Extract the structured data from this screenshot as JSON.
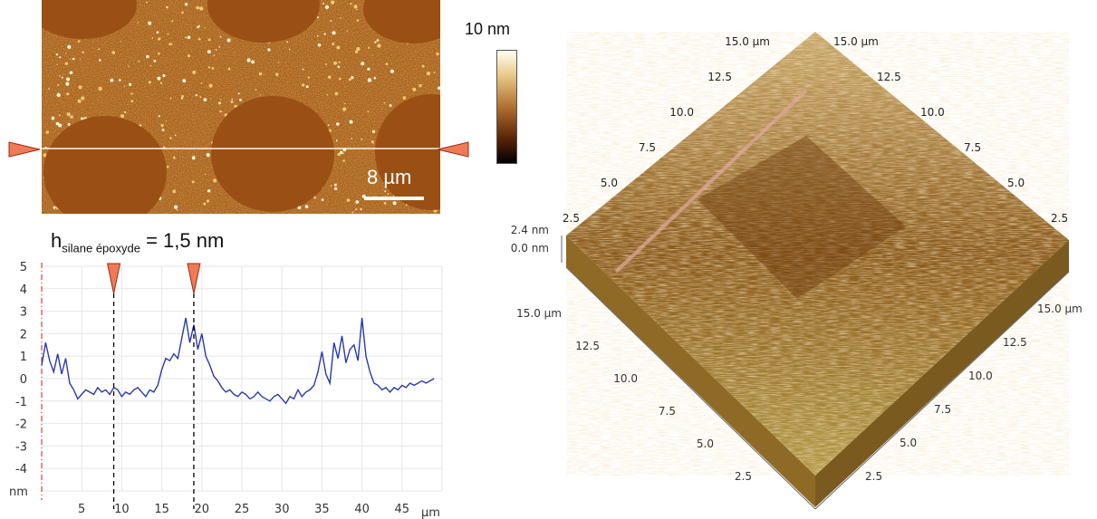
{
  "afm_image": {
    "colorbar_label": "10 nm",
    "scalebar_label": "8 µm"
  },
  "profile_annotation": {
    "text_main": "h",
    "text_sub": "silane époxyde",
    "text_value": " = 1,5 nm"
  },
  "chart_data": [
    {
      "type": "line",
      "ylabel": "nm",
      "xlabel": "µm",
      "xlim": [
        0,
        50
      ],
      "ylim": [
        -5,
        5
      ],
      "x_ticks": [
        "5",
        "10",
        "15",
        "20",
        "25",
        "30",
        "35",
        "40",
        "45"
      ],
      "y_ticks": [
        "5",
        "4",
        "3",
        "2",
        "1",
        "0",
        "-1",
        "-2",
        "-3",
        "-4"
      ],
      "grid": true,
      "markers_x": [
        9,
        19
      ],
      "series": [
        {
          "color": "#2a3aa8",
          "x": [
            0,
            0.5,
            1,
            1.5,
            2,
            2.5,
            3,
            3.5,
            4,
            4.5,
            5,
            5.5,
            6,
            6.5,
            7,
            7.5,
            8,
            8.5,
            9,
            9.5,
            10,
            10.5,
            11,
            11.5,
            12,
            12.5,
            13,
            13.5,
            14,
            14.5,
            15,
            15.5,
            16,
            16.5,
            17,
            17.5,
            18,
            18.5,
            19,
            19.5,
            20,
            20.5,
            21,
            21.5,
            22,
            22.5,
            23,
            23.5,
            24,
            24.5,
            25,
            25.5,
            26,
            26.5,
            27,
            27.5,
            28,
            28.5,
            29,
            29.5,
            30,
            30.5,
            31,
            31.5,
            32,
            32.5,
            33,
            33.5,
            34,
            34.5,
            35,
            35.5,
            36,
            36.5,
            37,
            37.5,
            38,
            38.5,
            39,
            39.5,
            40,
            40.5,
            41,
            41.5,
            42,
            42.5,
            43,
            43.5,
            44,
            44.5,
            45,
            45.5,
            46,
            46.5,
            47,
            47.5,
            48,
            48.5,
            49
          ],
          "y": [
            0.6,
            1.6,
            0.8,
            0.3,
            1.1,
            0.2,
            0.9,
            -0.2,
            -0.5,
            -0.9,
            -0.7,
            -0.5,
            -0.6,
            -0.7,
            -0.4,
            -0.6,
            -0.5,
            -0.7,
            -0.4,
            -0.5,
            -0.8,
            -0.6,
            -0.7,
            -0.5,
            -0.4,
            -0.6,
            -0.8,
            -0.5,
            -0.6,
            -0.3,
            0.4,
            0.9,
            0.8,
            1.1,
            0.9,
            1.8,
            2.7,
            1.6,
            2.4,
            1.3,
            2.0,
            1.0,
            0.6,
            0.1,
            -0.1,
            -0.4,
            -0.6,
            -0.5,
            -0.7,
            -0.8,
            -0.6,
            -0.7,
            -0.9,
            -0.8,
            -0.6,
            -0.8,
            -0.9,
            -1.0,
            -0.8,
            -0.7,
            -0.9,
            -1.1,
            -0.8,
            -0.9,
            -0.5,
            -0.8,
            -0.6,
            -0.5,
            -0.3,
            0.3,
            1.2,
            0.2,
            -0.2,
            1.6,
            0.9,
            1.9,
            0.7,
            1.3,
            1.5,
            0.8,
            2.7,
            1.0,
            0.3,
            -0.2,
            -0.3,
            -0.5,
            -0.4,
            -0.6,
            -0.4,
            -0.5,
            -0.3,
            -0.4,
            -0.2,
            -0.3,
            -0.2,
            -0.1,
            -0.2,
            -0.1,
            0.0
          ]
        }
      ]
    },
    {
      "type": "surface",
      "z_ticks": [
        "2.4 nm",
        "0.0 nm"
      ],
      "front_left_axis": [
        "15.0 µm",
        "12.5",
        "10.0",
        "7.5",
        "5.0",
        "2.5"
      ],
      "front_right_axis": [
        "15.0 µm",
        "12.5",
        "10.0",
        "7.5",
        "5.0",
        "2.5"
      ],
      "back_left_axis": [
        "15.0 µm",
        "12.5",
        "10.0",
        "7.5",
        "5.0",
        "2.5"
      ],
      "back_right_axis": [
        "15.0 µm",
        "12.5",
        "10.0",
        "7.5",
        "5.0",
        "2.5"
      ]
    }
  ]
}
